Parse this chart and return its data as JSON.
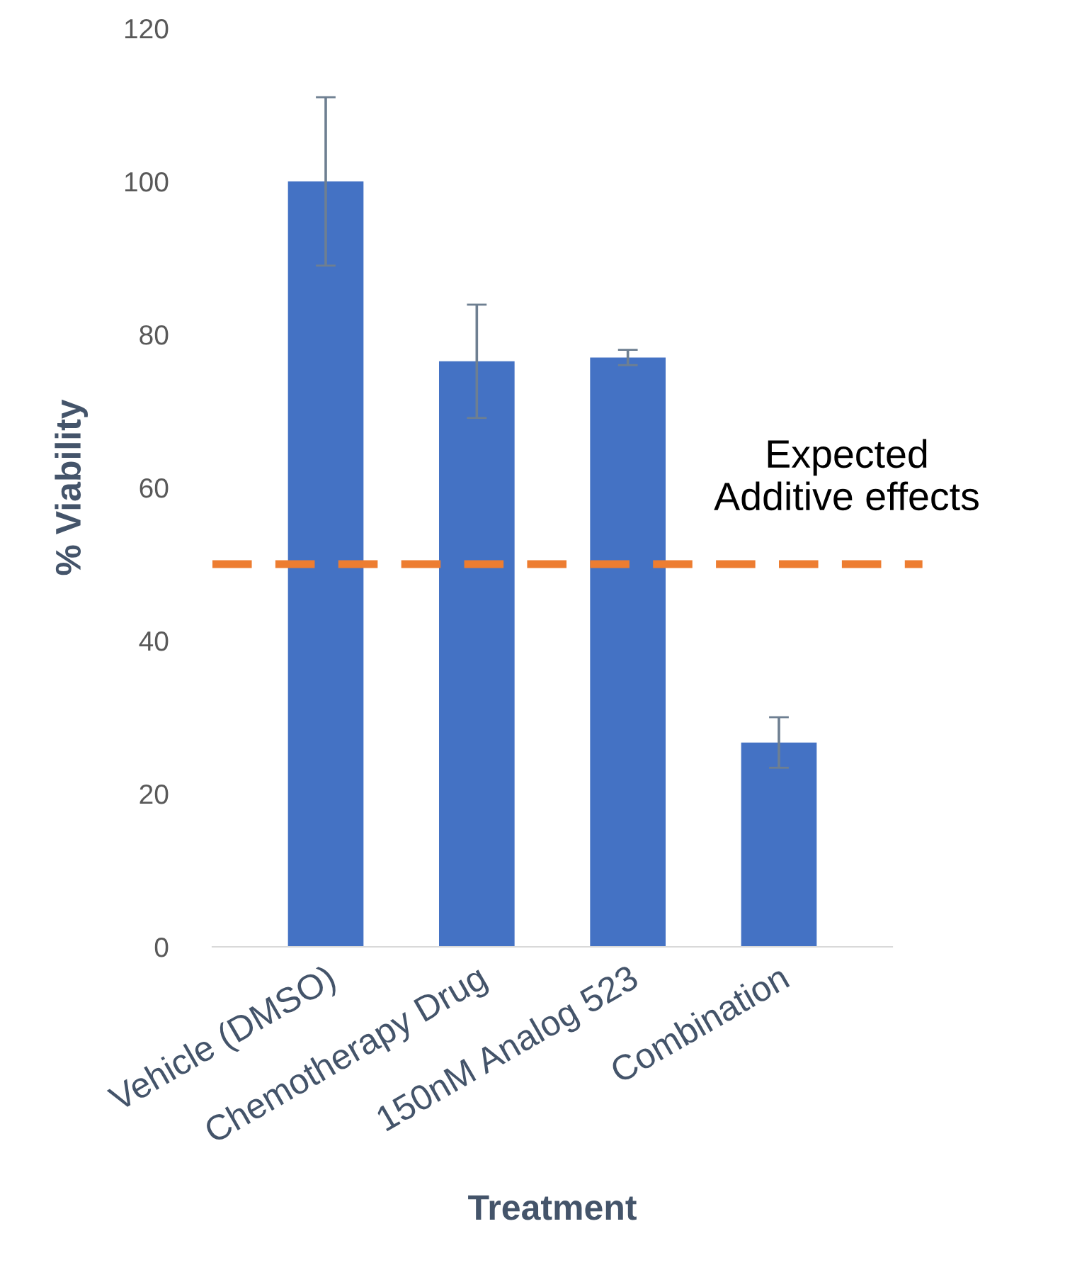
{
  "chart_data": {
    "type": "bar",
    "xlabel": "Treatment",
    "ylabel": "% Viability",
    "categories": [
      "Vehicle (DMSO)",
      "Chemotherapy Drug",
      "150nM Analog 523",
      "Combination"
    ],
    "values": [
      100,
      76.5,
      77,
      26.7
    ],
    "errors": [
      11,
      7.4,
      1,
      3.3
    ],
    "color": "#4472c4",
    "ylim": [
      0,
      120
    ],
    "yticks": [
      0,
      20,
      40,
      60,
      80,
      100,
      120
    ],
    "grid": false,
    "ref_lines": [
      {
        "axis": "y",
        "value": 50,
        "label": "Expected\nAdditive effects",
        "color": "#ed7d31",
        "line_style": "dashed"
      }
    ]
  }
}
